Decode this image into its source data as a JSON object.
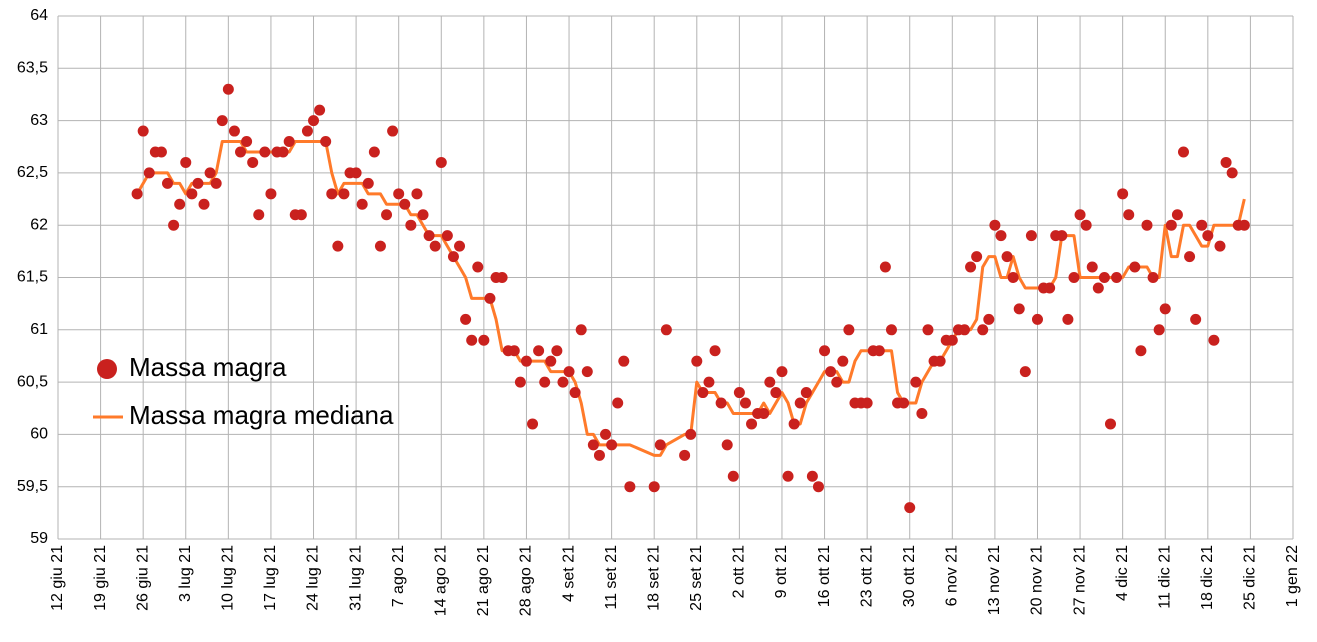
{
  "chart_data": {
    "type": "scatter",
    "x": [
      "2021-06-25",
      "2021-06-26",
      "2021-06-27",
      "2021-06-28",
      "2021-06-29",
      "2021-06-30",
      "2021-07-01",
      "2021-07-02",
      "2021-07-03",
      "2021-07-04",
      "2021-07-05",
      "2021-07-06",
      "2021-07-07",
      "2021-07-08",
      "2021-07-09",
      "2021-07-10",
      "2021-07-11",
      "2021-07-12",
      "2021-07-13",
      "2021-07-14",
      "2021-07-15",
      "2021-07-16",
      "2021-07-17",
      "2021-07-18",
      "2021-07-19",
      "2021-07-20",
      "2021-07-21",
      "2021-07-22",
      "2021-07-23",
      "2021-07-24",
      "2021-07-25",
      "2021-07-26",
      "2021-07-27",
      "2021-07-28",
      "2021-07-29",
      "2021-07-30",
      "2021-07-31",
      "2021-08-01",
      "2021-08-02",
      "2021-08-03",
      "2021-08-04",
      "2021-08-05",
      "2021-08-06",
      "2021-08-07",
      "2021-08-08",
      "2021-08-09",
      "2021-08-10",
      "2021-08-11",
      "2021-08-12",
      "2021-08-13",
      "2021-08-14",
      "2021-08-15",
      "2021-08-16",
      "2021-08-17",
      "2021-08-18",
      "2021-08-19",
      "2021-08-20",
      "2021-08-21",
      "2021-08-22",
      "2021-08-23",
      "2021-08-24",
      "2021-08-25",
      "2021-08-26",
      "2021-08-27",
      "2021-08-28",
      "2021-08-29",
      "2021-08-30",
      "2021-08-31",
      "2021-09-01",
      "2021-09-02",
      "2021-09-03",
      "2021-09-04",
      "2021-09-05",
      "2021-09-06",
      "2021-09-07",
      "2021-09-08",
      "2021-09-09",
      "2021-09-10",
      "2021-09-11",
      "2021-09-12",
      "2021-09-13",
      "2021-09-14",
      "2021-09-18",
      "2021-09-19",
      "2021-09-20",
      "2021-09-23",
      "2021-09-24",
      "2021-09-25",
      "2021-09-26",
      "2021-09-27",
      "2021-09-28",
      "2021-09-29",
      "2021-09-30",
      "2021-10-01",
      "2021-10-02",
      "2021-10-03",
      "2021-10-04",
      "2021-10-05",
      "2021-10-06",
      "2021-10-07",
      "2021-10-08",
      "2021-10-09",
      "2021-10-10",
      "2021-10-11",
      "2021-10-12",
      "2021-10-13",
      "2021-10-14",
      "2021-10-15",
      "2021-10-16",
      "2021-10-17",
      "2021-10-18",
      "2021-10-19",
      "2021-10-20",
      "2021-10-21",
      "2021-10-22",
      "2021-10-23",
      "2021-10-24",
      "2021-10-25",
      "2021-10-26",
      "2021-10-27",
      "2021-10-28",
      "2021-10-29",
      "2021-10-30",
      "2021-10-31",
      "2021-11-01",
      "2021-11-02",
      "2021-11-03",
      "2021-11-04",
      "2021-11-05",
      "2021-11-06",
      "2021-11-07",
      "2021-11-08",
      "2021-11-09",
      "2021-11-10",
      "2021-11-11",
      "2021-11-12",
      "2021-11-13",
      "2021-11-14",
      "2021-11-15",
      "2021-11-16",
      "2021-11-17",
      "2021-11-18",
      "2021-11-19",
      "2021-11-20",
      "2021-11-21",
      "2021-11-22",
      "2021-11-23",
      "2021-11-24",
      "2021-11-25",
      "2021-11-26",
      "2021-11-27",
      "2021-11-28",
      "2021-11-29",
      "2021-11-30",
      "2021-12-01",
      "2021-12-02",
      "2021-12-03",
      "2021-12-04",
      "2021-12-05",
      "2021-12-06",
      "2021-12-07",
      "2021-12-08",
      "2021-12-09",
      "2021-12-10",
      "2021-12-11",
      "2021-12-12",
      "2021-12-13",
      "2021-12-14",
      "2021-12-15",
      "2021-12-16",
      "2021-12-17",
      "2021-12-18",
      "2021-12-19",
      "2021-12-20",
      "2021-12-21",
      "2021-12-22",
      "2021-12-23",
      "2021-12-24"
    ],
    "series": [
      {
        "name": "Massa magra",
        "type": "scatter",
        "color": "#c9211e",
        "values": [
          62.3,
          62.9,
          62.5,
          62.7,
          62.7,
          62.4,
          62.0,
          62.2,
          62.6,
          62.3,
          62.4,
          62.2,
          62.5,
          62.4,
          63.0,
          63.3,
          62.9,
          62.7,
          62.8,
          62.6,
          62.1,
          62.7,
          62.3,
          62.7,
          62.7,
          62.8,
          62.1,
          62.1,
          62.9,
          63.0,
          63.1,
          62.8,
          62.3,
          61.8,
          62.3,
          62.5,
          62.5,
          62.2,
          62.4,
          62.7,
          61.8,
          62.1,
          62.9,
          62.3,
          62.2,
          62.0,
          62.3,
          62.1,
          61.9,
          61.8,
          62.6,
          61.9,
          61.7,
          61.8,
          61.1,
          60.9,
          61.6,
          60.9,
          61.3,
          61.5,
          61.5,
          60.8,
          60.8,
          60.5,
          60.7,
          60.1,
          60.8,
          60.5,
          60.7,
          60.8,
          60.5,
          60.6,
          60.4,
          61.0,
          60.6,
          59.9,
          59.8,
          60.0,
          59.9,
          60.3,
          60.7,
          59.5,
          59.5,
          59.9,
          61.0,
          59.8,
          60.0,
          60.7,
          60.4,
          60.5,
          60.8,
          60.3,
          59.9,
          59.6,
          60.4,
          60.3,
          60.1,
          60.2,
          60.2,
          60.5,
          60.4,
          60.6,
          59.6,
          60.1,
          60.3,
          60.4,
          59.6,
          59.5,
          60.8,
          60.6,
          60.5,
          60.7,
          61.0,
          60.3,
          60.3,
          60.3,
          60.8,
          60.8,
          61.6,
          61.0,
          60.3,
          60.3,
          59.3,
          60.5,
          60.2,
          61.0,
          60.7,
          60.7,
          60.9,
          60.9,
          61.0,
          61.0,
          61.6,
          61.7,
          61.0,
          61.1,
          62.0,
          61.9,
          61.7,
          61.5,
          61.2,
          60.6,
          61.9,
          61.1,
          61.4,
          61.4,
          61.9,
          61.9,
          61.1,
          61.5,
          62.1,
          62.0,
          61.6,
          61.4,
          61.5,
          60.1,
          61.5,
          62.3,
          62.1,
          61.6,
          60.8,
          62.0,
          61.5,
          61.0,
          61.2,
          62.0,
          62.1,
          62.7,
          61.7,
          61.1,
          62.0,
          61.9,
          60.9,
          61.8,
          62.6,
          62.5,
          62.0,
          62.0
        ]
      },
      {
        "name": "Massa magra mediana",
        "type": "line",
        "color": "#ff7a2a",
        "values": [
          62.3,
          62.4,
          62.5,
          62.5,
          62.5,
          62.5,
          62.4,
          62.4,
          62.3,
          62.4,
          62.4,
          62.4,
          62.4,
          62.5,
          62.8,
          62.8,
          62.8,
          62.8,
          62.7,
          62.7,
          62.7,
          62.7,
          62.7,
          62.7,
          62.7,
          62.7,
          62.8,
          62.8,
          62.8,
          62.8,
          62.8,
          62.8,
          62.5,
          62.3,
          62.4,
          62.4,
          62.4,
          62.4,
          62.3,
          62.3,
          62.3,
          62.2,
          62.2,
          62.2,
          62.2,
          62.1,
          62.1,
          62.0,
          61.9,
          61.9,
          61.9,
          61.8,
          61.7,
          61.6,
          61.5,
          61.3,
          61.3,
          61.3,
          61.3,
          61.1,
          60.8,
          60.8,
          60.8,
          60.7,
          60.7,
          60.7,
          60.7,
          60.7,
          60.6,
          60.6,
          60.6,
          60.6,
          60.5,
          60.3,
          60.0,
          60.0,
          59.9,
          59.9,
          59.9,
          59.9,
          59.9,
          59.9,
          59.8,
          59.8,
          59.9,
          60.0,
          60.0,
          60.5,
          60.4,
          60.4,
          60.4,
          60.3,
          60.3,
          60.2,
          60.2,
          60.2,
          60.2,
          60.2,
          60.3,
          60.2,
          60.3,
          60.4,
          60.3,
          60.1,
          60.1,
          60.3,
          60.4,
          60.5,
          60.6,
          60.6,
          60.6,
          60.5,
          60.5,
          60.7,
          60.8,
          60.8,
          60.8,
          60.8,
          60.8,
          60.8,
          60.4,
          60.3,
          60.3,
          60.3,
          60.5,
          60.6,
          60.7,
          60.7,
          60.8,
          60.9,
          61.0,
          61.0,
          61.0,
          61.1,
          61.6,
          61.7,
          61.7,
          61.5,
          61.5,
          61.7,
          61.5,
          61.4,
          61.4,
          61.4,
          61.4,
          61.4,
          61.5,
          61.9,
          61.9,
          61.9,
          61.5,
          61.5,
          61.5,
          61.5,
          61.5,
          61.5,
          61.5,
          61.5,
          61.6,
          61.6,
          61.6,
          61.6,
          61.5,
          61.5,
          62.0,
          61.7,
          61.7,
          62.0,
          62.0,
          61.9,
          61.8,
          61.8,
          62.0,
          62.0,
          62.0,
          62.0,
          62.0,
          62.25
        ]
      }
    ],
    "xlim": [
      "2021-06-12",
      "2022-01-01"
    ],
    "xticks": [
      {
        "value": "2021-06-12",
        "label": "12 giu 21"
      },
      {
        "value": "2021-06-19",
        "label": "19 giu 21"
      },
      {
        "value": "2021-06-26",
        "label": "26 giu 21"
      },
      {
        "value": "2021-07-03",
        "label": "3 lug 21"
      },
      {
        "value": "2021-07-10",
        "label": "10 lug 21"
      },
      {
        "value": "2021-07-17",
        "label": "17 lug 21"
      },
      {
        "value": "2021-07-24",
        "label": "24 lug 21"
      },
      {
        "value": "2021-07-31",
        "label": "31 lug 21"
      },
      {
        "value": "2021-08-07",
        "label": "7 ago 21"
      },
      {
        "value": "2021-08-14",
        "label": "14 ago 21"
      },
      {
        "value": "2021-08-21",
        "label": "21 ago 21"
      },
      {
        "value": "2021-08-28",
        "label": "28 ago 21"
      },
      {
        "value": "2021-09-04",
        "label": "4 set 21"
      },
      {
        "value": "2021-09-11",
        "label": "11 set 21"
      },
      {
        "value": "2021-09-18",
        "label": "18 set 21"
      },
      {
        "value": "2021-09-25",
        "label": "25 set 21"
      },
      {
        "value": "2021-10-02",
        "label": "2 ott 21"
      },
      {
        "value": "2021-10-09",
        "label": "9 ott 21"
      },
      {
        "value": "2021-10-16",
        "label": "16 ott 21"
      },
      {
        "value": "2021-10-23",
        "label": "23 ott 21"
      },
      {
        "value": "2021-10-30",
        "label": "30 ott 21"
      },
      {
        "value": "2021-11-06",
        "label": "6 nov 21"
      },
      {
        "value": "2021-11-13",
        "label": "13 nov 21"
      },
      {
        "value": "2021-11-20",
        "label": "20 nov 21"
      },
      {
        "value": "2021-11-27",
        "label": "27 nov 21"
      },
      {
        "value": "2021-12-04",
        "label": "4 dic 21"
      },
      {
        "value": "2021-12-11",
        "label": "11 dic 21"
      },
      {
        "value": "2021-12-18",
        "label": "18 dic 21"
      },
      {
        "value": "2021-12-25",
        "label": "25 dic 21"
      },
      {
        "value": "2022-01-01",
        "label": "1 gen 22"
      }
    ],
    "ylim": [
      59,
      64
    ],
    "yticks": [
      59,
      {
        "value": 59.5,
        "label": "59,5"
      },
      60,
      {
        "value": 60.5,
        "label": "60,5"
      },
      61,
      {
        "value": 61.5,
        "label": "61,5"
      },
      62,
      {
        "value": 62.5,
        "label": "62,5"
      },
      63,
      {
        "value": 63.5,
        "label": "63,5"
      },
      64
    ],
    "grid": true,
    "legend": "left"
  }
}
